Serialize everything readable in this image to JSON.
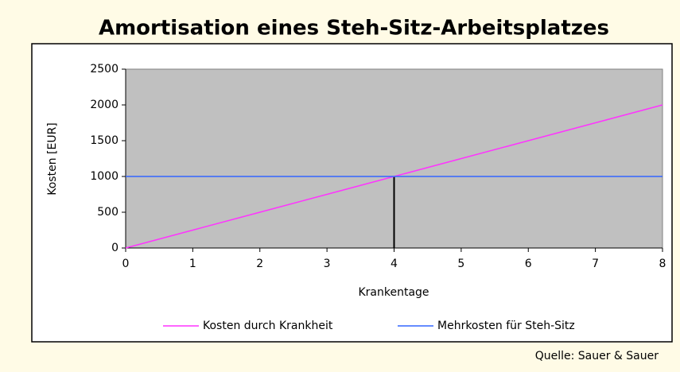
{
  "chart_data": {
    "type": "line",
    "title": "Amortisation eines Steh-Sitz-Arbeitsplatzes",
    "xlabel": "Krankentage",
    "ylabel": "Kosten [EUR]",
    "source": "Quelle: Sauer & Sauer",
    "x": [
      0,
      1,
      2,
      3,
      4,
      5,
      6,
      7,
      8
    ],
    "series": [
      {
        "name": "Kosten durch Krankheit",
        "color": "#ff33ff",
        "values": [
          0,
          250,
          500,
          750,
          1000,
          1250,
          1500,
          1750,
          2000
        ]
      },
      {
        "name": "Mehrkosten für Steh-Sitz",
        "color": "#3366ff",
        "values": [
          1000,
          1000,
          1000,
          1000,
          1000,
          1000,
          1000,
          1000,
          1000
        ]
      }
    ],
    "drop_line": {
      "x": 4,
      "y": 1000,
      "color": "#000000"
    },
    "xlim": [
      0,
      8
    ],
    "xticks": [
      0,
      1,
      2,
      3,
      4,
      5,
      6,
      7,
      8
    ],
    "ylim": [
      0,
      2500
    ],
    "yticks": [
      0,
      500,
      1000,
      1500,
      2000,
      2500
    ],
    "plot_background": "#c0c0c0",
    "legend": "bottom"
  }
}
